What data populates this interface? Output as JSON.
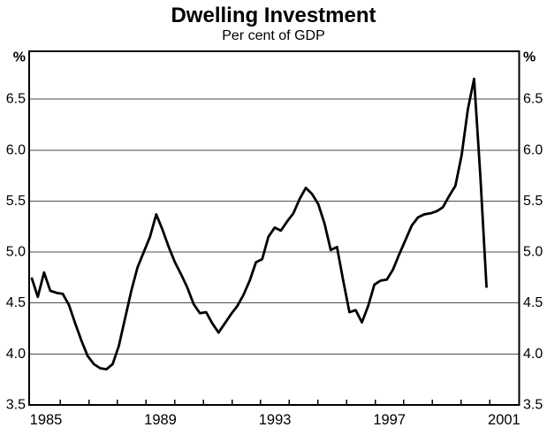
{
  "chart_data": {
    "type": "line",
    "title": "Dwelling Investment",
    "subtitle": "Per cent of GDP",
    "unit_label": "%",
    "line_color": "#000000",
    "grid_color": "#4d4d4d",
    "x_axis": {
      "tick_labels": [
        "1985",
        "1989",
        "1993",
        "1997",
        "2001"
      ],
      "tick_label_years": [
        1985,
        1989,
        1993,
        1997,
        2001
      ],
      "minor_tick_start_year": 1986,
      "minor_tick_end_year": 2001,
      "range_years": [
        1984.9,
        2002.0
      ]
    },
    "y_axis": {
      "unit": "%",
      "tick_labels": [
        "3.5",
        "4.0",
        "4.5",
        "5.0",
        "5.5",
        "6.0",
        "6.5"
      ],
      "tick_values": [
        3.5,
        4.0,
        4.5,
        5.0,
        5.5,
        6.0,
        6.5
      ],
      "grid_values": [
        4.0,
        4.5,
        5.0,
        5.5,
        6.0,
        6.5
      ],
      "ylim": [
        3.5,
        6.97
      ]
    },
    "series": [
      {
        "name": "Dwelling investment, per cent of GDP",
        "frequency": "quarterly",
        "x_start_year": 1985.0,
        "x_end_year": 2000.9,
        "values": [
          4.75,
          4.56,
          4.8,
          4.62,
          4.6,
          4.59,
          4.48,
          4.3,
          4.13,
          3.98,
          3.9,
          3.86,
          3.85,
          3.9,
          4.08,
          4.35,
          4.62,
          4.85,
          5.0,
          5.15,
          5.37,
          5.22,
          5.05,
          4.9,
          4.78,
          4.65,
          4.49,
          4.4,
          4.41,
          4.3,
          4.21,
          4.3,
          4.39,
          4.47,
          4.58,
          4.72,
          4.9,
          4.93,
          5.15,
          5.24,
          5.21,
          5.3,
          5.38,
          5.52,
          5.63,
          5.57,
          5.47,
          5.28,
          5.02,
          5.05,
          4.72,
          4.41,
          4.43,
          4.31,
          4.47,
          4.68,
          4.72,
          4.73,
          4.83,
          4.98,
          5.12,
          5.26,
          5.34,
          5.37,
          5.38,
          5.4,
          5.44,
          5.55,
          5.65,
          5.95,
          6.4,
          6.7,
          5.75,
          4.65
        ]
      }
    ]
  }
}
